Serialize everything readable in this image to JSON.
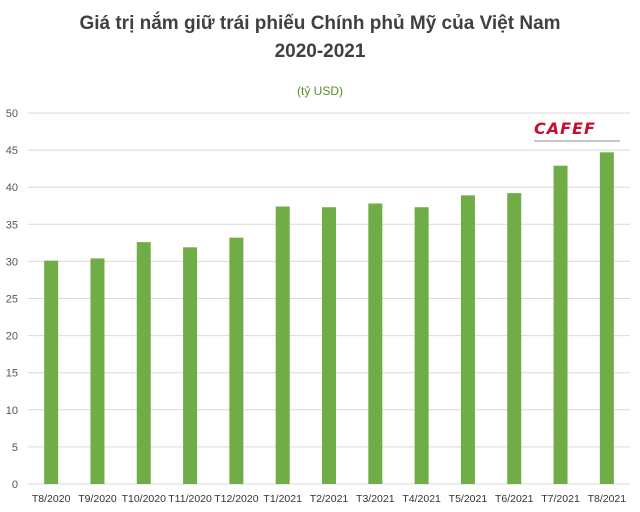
{
  "chart_data": {
    "type": "bar",
    "title": "Giá trị nắm giữ trái phiếu Chính phủ Mỹ của Việt Nam",
    "title_line2": "2020-2021",
    "unit": "(tỷ USD)",
    "categories": [
      "T8/2020",
      "T9/2020",
      "T10/2020",
      "T11/2020",
      "T12/2020",
      "T1/2021",
      "T2/2021",
      "T3/2021",
      "T4/2021",
      "T5/2021",
      "T6/2021",
      "T7/2021",
      "T8/2021"
    ],
    "values": [
      30.1,
      30.4,
      32.6,
      31.9,
      33.2,
      37.4,
      37.3,
      37.8,
      37.3,
      38.9,
      39.2,
      42.9,
      44.7
    ],
    "ylim": [
      0,
      50
    ],
    "yticks": [
      0,
      5,
      10,
      15,
      20,
      25,
      30,
      35,
      40,
      45,
      50
    ],
    "grid": true,
    "bar_color": "#70ad47"
  },
  "logo": {
    "text": "CAFEF",
    "color": "#c8102e"
  }
}
